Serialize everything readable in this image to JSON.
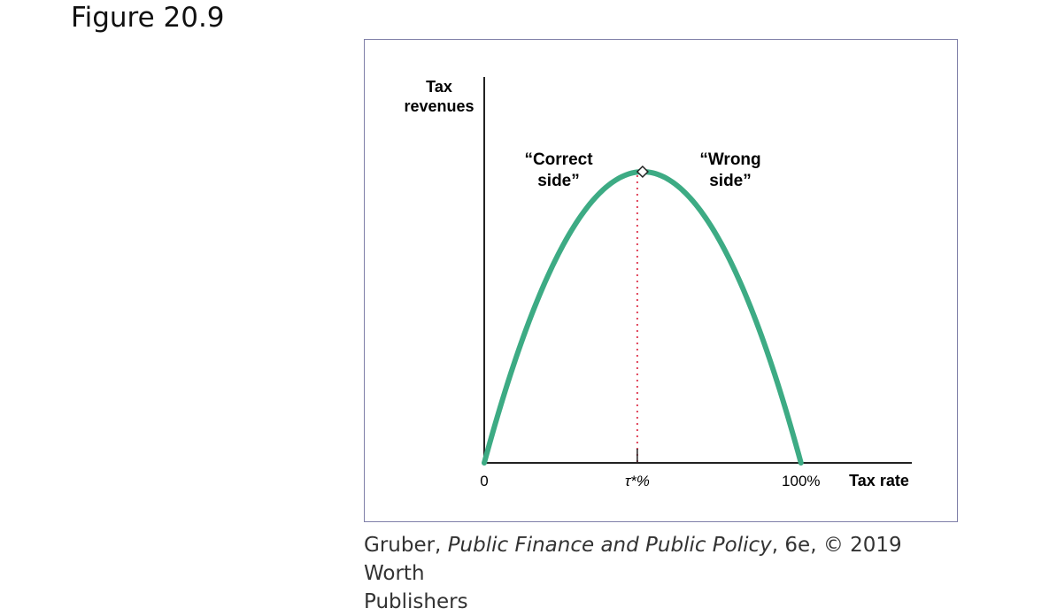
{
  "figure_label": "Figure 20.9",
  "caption": {
    "author": "Gruber, ",
    "book_title": "Public Finance and Public Policy",
    "rest_line1": ", 6e, © 2019 Worth",
    "rest_line2": "Publishers"
  },
  "colors": {
    "curve": "#3dab84",
    "axis": "#222222",
    "dotted": "#e0435a",
    "frame": "#7f7fa8"
  },
  "chart_data": {
    "type": "line",
    "title": "",
    "xlabel": "Tax rate",
    "ylabel": "Tax revenues",
    "x_ticks": [
      {
        "x": 0,
        "label": "0"
      },
      {
        "x": 50,
        "label": "τ*%"
      },
      {
        "x": 100,
        "label": "100%"
      }
    ],
    "xlim": [
      0,
      135
    ],
    "ylim": [
      0,
      100
    ],
    "series": [
      {
        "x": [
          0,
          10,
          20,
          30,
          40,
          50,
          60,
          70,
          80,
          90,
          100
        ],
        "y": [
          0,
          36,
          64,
          84,
          96,
          100,
          96,
          84,
          64,
          36,
          0
        ]
      }
    ],
    "peak": {
      "x": 50,
      "y": 100
    },
    "annotations": [
      {
        "text_line1": "“Correct",
        "text_line2": "side”"
      },
      {
        "text_line1": "“Wrong",
        "text_line2": "side”"
      }
    ]
  }
}
